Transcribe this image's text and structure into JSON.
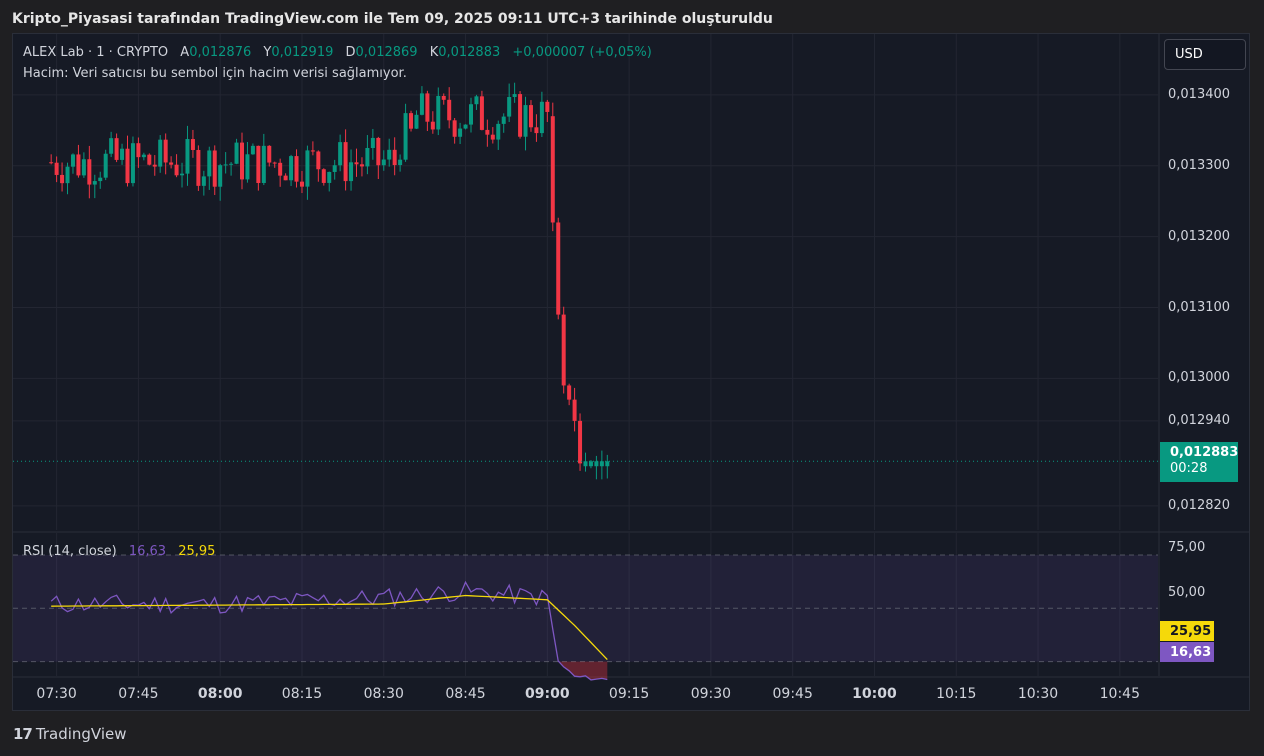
{
  "page_title": "Kripto_Piyasasi tarafından TradingView.com ile Tem 09, 2025 09:11 UTC+3 tarihinde oluşturuldu",
  "legend": {
    "symbol": "ALEX Lab · 1 · CRYPTO",
    "open_label": "A",
    "open": "0,012876",
    "high_label": "Y",
    "high": "0,012919",
    "low_label": "D",
    "low": "0,012869",
    "close_label": "K",
    "close": "0,012883",
    "change": "+0,000007 (+0,05%)",
    "volume_note": "Hacim: Veri satıcısı bu sembol için hacim verisi sağlamıyor."
  },
  "currency_button": "USD",
  "price_axis": [
    "0,013400",
    "0,013300",
    "0,013200",
    "0,013100",
    "0,013000",
    "0,012940",
    "0,012820"
  ],
  "last_price": {
    "price": "0,012883",
    "countdown": "00:28"
  },
  "rsi": {
    "label": "RSI (14, close)",
    "value": "16,63",
    "ma_value": "25,95",
    "levels": [
      "75,00",
      "50,00"
    ]
  },
  "time_axis": [
    "07:30",
    "07:45",
    "08:00",
    "08:15",
    "08:30",
    "08:45",
    "09:00",
    "09:15",
    "09:30",
    "09:45",
    "10:00",
    "10:15",
    "10:30",
    "10:45"
  ],
  "time_axis_bold": [
    "08:00",
    "09:00",
    "10:00"
  ],
  "brand": {
    "logo": "17",
    "name": "TradingView"
  },
  "colors": {
    "up": "#089981",
    "down": "#f23645",
    "rsi_line": "#7e57c2",
    "rsi_ma": "#f5d90a",
    "background": "#161a25",
    "grid": "#232632"
  },
  "chart_data": [
    {
      "type": "candlestick",
      "title": "ALEX Lab · 1 · CRYPTO",
      "x_unit": "time (1 min)",
      "x_range": [
        "07:29",
        "09:11"
      ],
      "ylim": [
        0.01281,
        0.01346
      ],
      "last_price": 0.012883,
      "segments": [
        {
          "from": "07:29",
          "to": "08:33",
          "level": 0.013305,
          "note": "range 0.01327-0.01334"
        },
        {
          "from": "08:33",
          "to": "08:36",
          "level": 0.01334
        },
        {
          "from": "08:36",
          "to": "09:01",
          "level": 0.01337,
          "note": "range 0.01334-0.01340"
        },
        {
          "from": "09:01",
          "to": "09:11",
          "points": [
            [
              0.01337,
              0.01322
            ],
            [
              0.01322,
              0.01309
            ],
            [
              0.01309,
              0.01299
            ],
            [
              0.01299,
              0.01297
            ],
            [
              0.01297,
              0.01294
            ],
            [
              0.01294,
              0.01288
            ],
            [
              0.012876,
              0.012883
            ]
          ]
        }
      ]
    },
    {
      "type": "line",
      "title": "RSI (14, close)",
      "ylim": [
        0,
        100
      ],
      "levels": [
        75,
        50,
        25
      ],
      "series": [
        {
          "name": "RSI",
          "values_approx": [
            {
              "t": "07:29",
              "v": 52
            },
            {
              "t": "08:00",
              "v": 52
            },
            {
              "t": "08:30",
              "v": 55
            },
            {
              "t": "08:45",
              "v": 58
            },
            {
              "t": "09:00",
              "v": 55
            },
            {
              "t": "09:02",
              "v": 25
            },
            {
              "t": "09:05",
              "v": 18
            },
            {
              "t": "09:11",
              "v": 16.63
            }
          ]
        },
        {
          "name": "RSI-based MA",
          "values_approx": [
            {
              "t": "07:29",
              "v": 51
            },
            {
              "t": "08:30",
              "v": 52
            },
            {
              "t": "08:45",
              "v": 56
            },
            {
              "t": "09:00",
              "v": 54
            },
            {
              "t": "09:05",
              "v": 42
            },
            {
              "t": "09:11",
              "v": 25.95
            }
          ]
        }
      ]
    }
  ]
}
